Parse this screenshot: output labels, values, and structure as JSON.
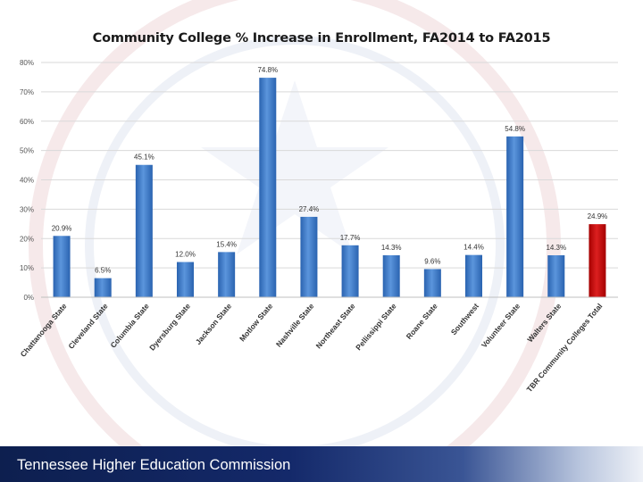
{
  "slide": {
    "footer_text": "Tennessee Higher Education Commission"
  },
  "chart_data": {
    "type": "bar",
    "title": "Community College % Increase in Enrollment, FA2014 to FA2015",
    "xlabel": "",
    "ylabel": "",
    "ylim": [
      0,
      80
    ],
    "yticks": [
      "0%",
      "10%",
      "20%",
      "30%",
      "40%",
      "50%",
      "60%",
      "70%",
      "80%"
    ],
    "grid": true,
    "legend": "none",
    "categories": [
      "Chattanooga State",
      "Cleveland State",
      "Columbia State",
      "Dyersburg State",
      "Jackson State",
      "Motlow State",
      "Nashville State",
      "Northeast State",
      "Pellissippi State",
      "Roane State",
      "Southwest",
      "Volunteer State",
      "Walters State",
      "TBR Community Colleges Total"
    ],
    "values": [
      20.9,
      6.5,
      45.1,
      12.0,
      15.4,
      74.8,
      27.4,
      17.7,
      14.3,
      9.6,
      14.4,
      54.8,
      14.3,
      24.9
    ],
    "data_labels": [
      "20.9%",
      "6.5%",
      "45.1%",
      "12.0%",
      "15.4%",
      "74.8%",
      "27.4%",
      "17.7%",
      "14.3%",
      "9.6%",
      "14.4%",
      "54.8%",
      "14.3%",
      "24.9%"
    ],
    "colors": {
      "bar": "#3b78c8",
      "total_bar": "#c00000",
      "grid": "#d9d9d9"
    }
  }
}
